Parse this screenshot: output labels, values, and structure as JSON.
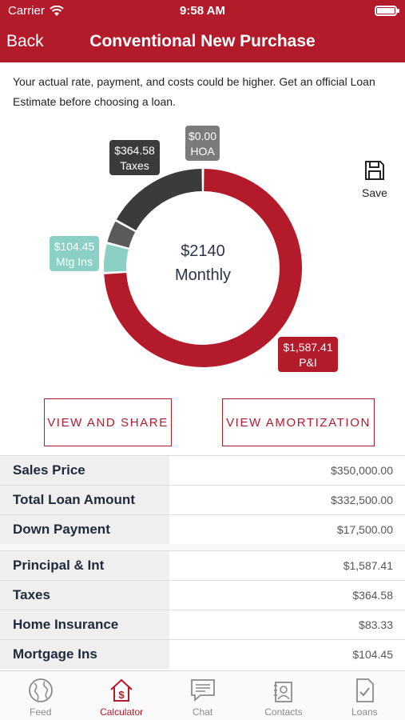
{
  "status": {
    "carrier": "Carrier",
    "time": "9:58 AM"
  },
  "nav": {
    "back": "Back",
    "title": "Conventional New Purchase"
  },
  "disclaimer": "Your actual rate, payment, and costs could be higher. Get an official Loan Estimate before choosing a loan.",
  "save_label": "Save",
  "chart_data": {
    "type": "pie",
    "style": "donut",
    "center_value": "$2140",
    "center_label": "Monthly",
    "slices": [
      {
        "label": "P&I",
        "value_text": "$1,587.41",
        "value": 1587.41,
        "color": "#b31b2b"
      },
      {
        "label": "Mtg Ins",
        "value_text": "$104.45",
        "value": 104.45,
        "color": "#8ccfc4"
      },
      {
        "label": "",
        "value_text": "",
        "value": 83.33,
        "color": "#5a5a5a"
      },
      {
        "label": "Taxes",
        "value_text": "$364.58",
        "value": 364.58,
        "color": "#3b3b3b"
      },
      {
        "label": "HOA",
        "value_text": "$0.00",
        "value": 0.0,
        "color": "#7b7b7b"
      }
    ]
  },
  "buttons": {
    "share": "VIEW AND SHARE",
    "amortization": "VIEW AMORTIZATION"
  },
  "loan_table": [
    {
      "label": "Sales Price",
      "value": "$350,000.00"
    },
    {
      "label": "Total Loan Amount",
      "value": "$332,500.00"
    },
    {
      "label": "Down Payment",
      "value": "$17,500.00"
    }
  ],
  "payment_table": [
    {
      "label": "Principal & Int",
      "value": "$1,587.41"
    },
    {
      "label": "Taxes",
      "value": "$364.58"
    },
    {
      "label": "Home Insurance",
      "value": "$83.33"
    },
    {
      "label": "Mortgage Ins",
      "value": "$104.45"
    }
  ],
  "tabs": [
    {
      "label": "Feed",
      "icon": "globe-icon"
    },
    {
      "label": "Calculator",
      "icon": "calculator-house-icon",
      "active": true
    },
    {
      "label": "Chat",
      "icon": "chat-icon"
    },
    {
      "label": "Contacts",
      "icon": "contacts-icon"
    },
    {
      "label": "Loans",
      "icon": "loans-icon"
    }
  ],
  "colors": {
    "brand": "#b31b2b",
    "teal": "#8ccfc4",
    "dark": "#3b3b3b"
  }
}
